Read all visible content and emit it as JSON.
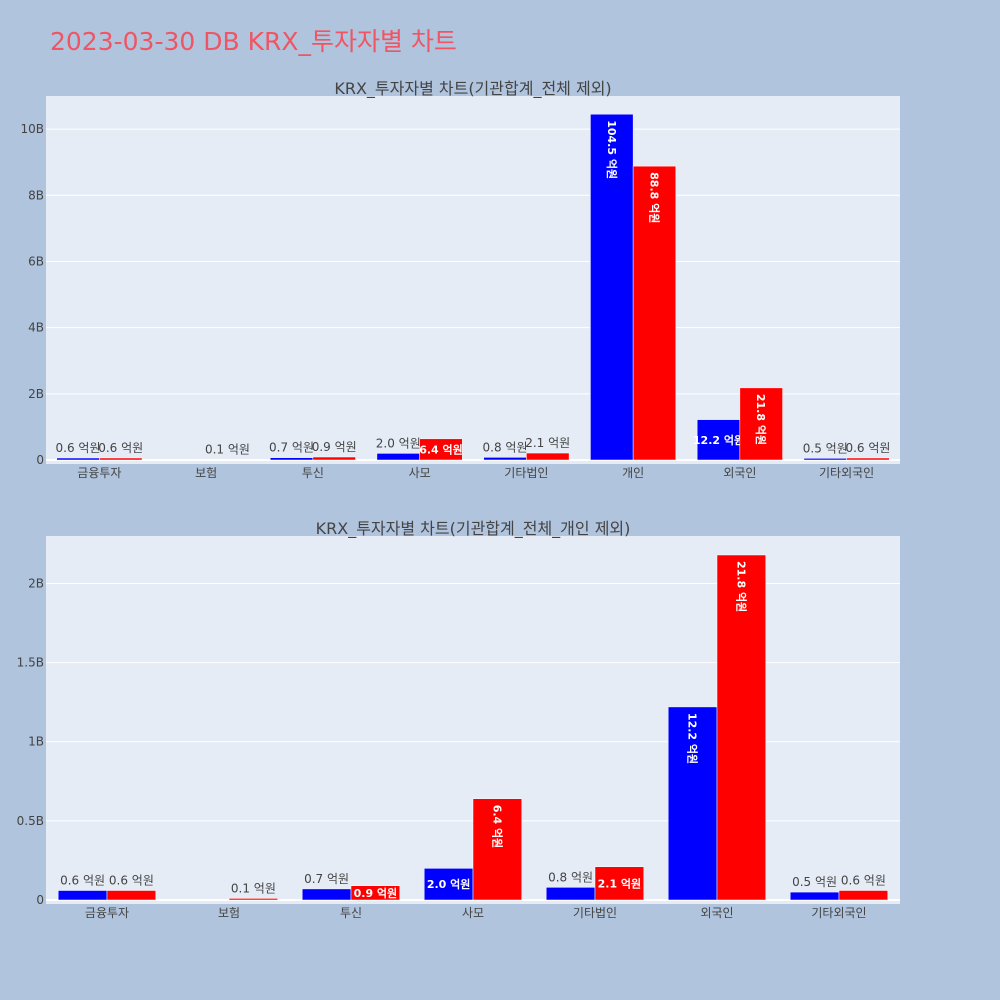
{
  "title": "2023-03-30 DB KRX_투자자별 차트",
  "colors": {
    "page_bg": "#b0c4de",
    "plot_bg": "#e5ecf6",
    "buy": "#0000ff",
    "sell": "#ff0000",
    "title": "#ef5563"
  },
  "chart_data": [
    {
      "type": "bar",
      "title": "KRX_투자자별 차트(기관합계_전체 제외)",
      "categories": [
        "금융투자",
        "보험",
        "투신",
        "사모",
        "기타법인",
        "개인",
        "외국인",
        "기타외국인"
      ],
      "series": [
        {
          "color": "#0000ff",
          "values": [
            60000000,
            0,
            70000000,
            200000000,
            80000000,
            10450000000,
            1220000000,
            50000000
          ],
          "labels": [
            "0.6 억원",
            "",
            "0.7 억원",
            "2.0 억원",
            "0.8 억원",
            "104.5 억원",
            "12.2 억원",
            "0.5 억원"
          ]
        },
        {
          "color": "#ff0000",
          "values": [
            60000000,
            10000000,
            90000000,
            640000000,
            210000000,
            8880000000,
            2180000000,
            60000000
          ],
          "labels": [
            "0.6 억원",
            "0.1 억원",
            "0.9 억원",
            "6.4 억원",
            "2.1 억원",
            "88.8 억원",
            "21.8 억원",
            "0.6 억원"
          ]
        }
      ],
      "ylim": [
        0,
        11000000000
      ],
      "yticks": [
        0,
        2000000000,
        4000000000,
        6000000000,
        8000000000,
        10000000000
      ],
      "ytick_labels": [
        "0",
        "2B",
        "4B",
        "6B",
        "8B",
        "10B"
      ],
      "grid": true
    },
    {
      "type": "bar",
      "title": "KRX_투자자별 차트(기관합계_전체_개인 제외)",
      "categories": [
        "금융투자",
        "보험",
        "투신",
        "사모",
        "기타법인",
        "외국인",
        "기타외국인"
      ],
      "series": [
        {
          "color": "#0000ff",
          "values": [
            60000000,
            0,
            70000000,
            200000000,
            80000000,
            1220000000,
            50000000
          ],
          "labels": [
            "0.6 억원",
            "",
            "0.7 억원",
            "2.0 억원",
            "0.8 억원",
            "12.2 억원",
            "0.5 억원"
          ]
        },
        {
          "color": "#ff0000",
          "values": [
            60000000,
            10000000,
            90000000,
            640000000,
            210000000,
            2180000000,
            60000000
          ],
          "labels": [
            "0.6 억원",
            "0.1 억원",
            "0.9 억원",
            "6.4 억원",
            "2.1 억원",
            "21.8 억원",
            "0.6 억원"
          ]
        }
      ],
      "ylim": [
        0,
        2300000000
      ],
      "yticks": [
        0,
        500000000,
        1000000000,
        1500000000,
        2000000000
      ],
      "ytick_labels": [
        "0",
        "0.5B",
        "1B",
        "1.5B",
        "2B"
      ],
      "grid": true
    }
  ]
}
